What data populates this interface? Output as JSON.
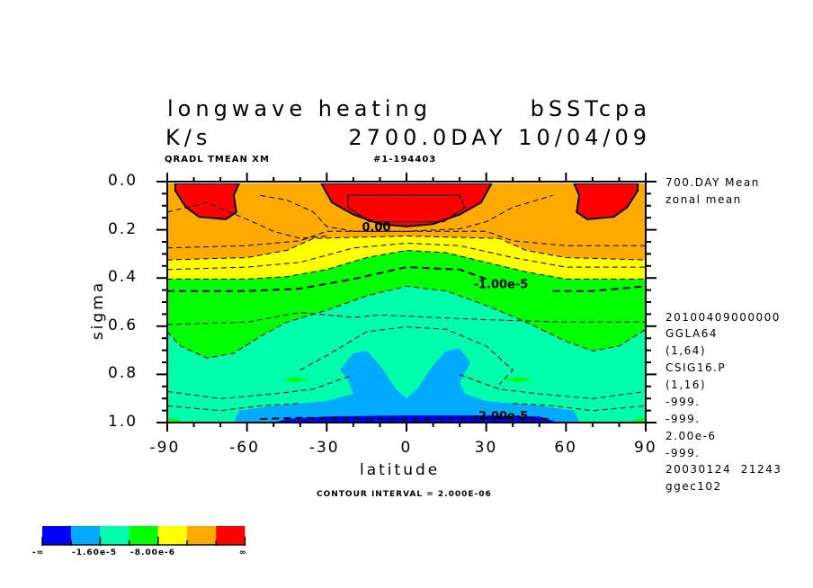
{
  "chart_data": {
    "type": "contour",
    "title": "longwave heating",
    "title_right": "bSSTcpa",
    "units": "K/s",
    "time": "2700.0DAY 10/04/09",
    "field_id": "QRADL TMEAN XM",
    "run_id": "#1-194403",
    "xlabel": "latitude",
    "ylabel": "sigma",
    "xlim": [
      -90,
      90
    ],
    "ylim": [
      0.0,
      1.0
    ],
    "y_inverted": true,
    "x_ticks": [
      "-90",
      "-60",
      "-30",
      "0",
      "30",
      "60",
      "90"
    ],
    "x_tick_values": [
      -90,
      -60,
      -30,
      0,
      30,
      60,
      90
    ],
    "y_ticks": [
      "0.0",
      "0.2",
      "0.4",
      "0.6",
      "0.8",
      "1.0"
    ],
    "y_tick_values": [
      0,
      0.2,
      0.4,
      0.6,
      0.8,
      1.0
    ],
    "contour_interval": "CONTOUR INTERVAL = 2.000E-06",
    "contour_labels": [
      {
        "text": "0.00",
        "lat": -10,
        "sigma": 0.18
      },
      {
        "text": "-1.00e-5",
        "lat": 32,
        "sigma": 0.42
      },
      {
        "text": "-2.00e-5",
        "lat": 32,
        "sigma": 0.97
      }
    ],
    "colors": {
      "dark_blue": "#0000ff",
      "light_blue": "#00aaff",
      "teal": "#00ffaa",
      "green": "#00ff00",
      "yellow": "#ffff00",
      "orange": "#ffaa00",
      "red": "#ff0000"
    },
    "boundaries": {
      "green_teal": [
        [
          -90,
          0.62
        ],
        [
          -85,
          0.68
        ],
        [
          -75,
          0.73
        ],
        [
          -65,
          0.71
        ],
        [
          -55,
          0.64
        ],
        [
          -45,
          0.58
        ],
        [
          -30,
          0.53
        ],
        [
          -15,
          0.47
        ],
        [
          0,
          0.43
        ],
        [
          15,
          0.45
        ],
        [
          30,
          0.51
        ],
        [
          45,
          0.58
        ],
        [
          60,
          0.66
        ],
        [
          70,
          0.7
        ],
        [
          80,
          0.68
        ],
        [
          90,
          0.61
        ]
      ],
      "yellow_green": [
        [
          -90,
          0.4
        ],
        [
          -60,
          0.4
        ],
        [
          -45,
          0.39
        ],
        [
          -30,
          0.36
        ],
        [
          -15,
          0.31
        ],
        [
          0,
          0.28
        ],
        [
          15,
          0.29
        ],
        [
          30,
          0.33
        ],
        [
          45,
          0.37
        ],
        [
          60,
          0.4
        ],
        [
          90,
          0.4
        ]
      ],
      "orange_yellow": [
        [
          -90,
          0.32
        ],
        [
          -60,
          0.31
        ],
        [
          -45,
          0.28
        ],
        [
          -35,
          0.23
        ],
        [
          0,
          0.22
        ],
        [
          35,
          0.23
        ],
        [
          45,
          0.28
        ],
        [
          60,
          0.31
        ],
        [
          90,
          0.32
        ]
      ]
    },
    "regions": {
      "red": [
        [
          [
            -87,
            0.0
          ],
          [
            -87,
            0.03
          ],
          [
            -83,
            0.1
          ],
          [
            -78,
            0.14
          ],
          [
            -68,
            0.15
          ],
          [
            -64,
            0.12
          ],
          [
            -65,
            0.05
          ],
          [
            -63,
            0.0
          ]
        ],
        [
          [
            -32,
            0.0
          ],
          [
            -28,
            0.08
          ],
          [
            -20,
            0.13
          ],
          [
            -10,
            0.17
          ],
          [
            0,
            0.18
          ],
          [
            10,
            0.17
          ],
          [
            20,
            0.13
          ],
          [
            28,
            0.08
          ],
          [
            32,
            0.0
          ]
        ],
        [
          [
            63,
            0.0
          ],
          [
            65,
            0.05
          ],
          [
            64,
            0.12
          ],
          [
            68,
            0.15
          ],
          [
            78,
            0.14
          ],
          [
            83,
            0.1
          ],
          [
            87,
            0.03
          ],
          [
            87,
            0.0
          ]
        ]
      ],
      "light_blue": [
        [
          [
            -65,
            1.0
          ],
          [
            -63,
            0.95
          ],
          [
            -50,
            0.93
          ],
          [
            -30,
            0.91
          ],
          [
            -20,
            0.88
          ],
          [
            -22,
            0.82
          ],
          [
            -25,
            0.78
          ],
          [
            -20,
            0.71
          ],
          [
            -15,
            0.7
          ],
          [
            -10,
            0.76
          ],
          [
            -4,
            0.86
          ],
          [
            0,
            0.9
          ],
          [
            4,
            0.86
          ],
          [
            10,
            0.76
          ],
          [
            15,
            0.7
          ],
          [
            20,
            0.69
          ],
          [
            24,
            0.75
          ],
          [
            20,
            0.83
          ],
          [
            22,
            0.88
          ],
          [
            30,
            0.91
          ],
          [
            50,
            0.93
          ],
          [
            63,
            0.95
          ],
          [
            65,
            1.0
          ]
        ]
      ],
      "dark_blue": [
        [
          [
            -50,
            1.0
          ],
          [
            -45,
            0.985
          ],
          [
            -30,
            0.975
          ],
          [
            0,
            0.97
          ],
          [
            30,
            0.97
          ],
          [
            50,
            0.975
          ],
          [
            57,
            1.0
          ]
        ]
      ],
      "green_patches": [
        [
          [
            -47,
            0.82
          ],
          [
            -42,
            0.81
          ],
          [
            -36,
            0.82
          ],
          [
            -42,
            0.83
          ]
        ],
        [
          [
            36,
            0.82
          ],
          [
            42,
            0.81
          ],
          [
            48,
            0.82
          ],
          [
            42,
            0.83
          ]
        ],
        [
          [
            -90,
            0.98
          ],
          [
            -86,
            0.985
          ],
          [
            -84,
            1.0
          ],
          [
            -90,
            1.0
          ]
        ],
        [
          [
            84,
            1.0
          ],
          [
            86,
            0.985
          ],
          [
            90,
            0.98
          ],
          [
            90,
            1.0
          ]
        ]
      ]
    },
    "dashed_contours": [
      [
        [
          -90,
          0.12
        ],
        [
          -75,
          0.08
        ],
        [
          -60,
          0.15
        ],
        [
          -50,
          0.2
        ],
        [
          -40,
          0.23
        ],
        [
          -30,
          0.22
        ]
      ],
      [
        [
          -55,
          0.05
        ],
        [
          -45,
          0.07
        ],
        [
          -35,
          0.12
        ],
        [
          -30,
          0.18
        ],
        [
          -20,
          0.2
        ],
        [
          0,
          0.2
        ],
        [
          20,
          0.19
        ],
        [
          30,
          0.16
        ],
        [
          40,
          0.1
        ],
        [
          55,
          0.05
        ]
      ],
      [
        [
          -90,
          0.27
        ],
        [
          -60,
          0.26
        ],
        [
          -40,
          0.24
        ],
        [
          -30,
          0.2
        ],
        [
          30,
          0.2
        ],
        [
          40,
          0.24
        ],
        [
          60,
          0.26
        ],
        [
          90,
          0.26
        ]
      ],
      [
        [
          -90,
          0.36
        ],
        [
          -60,
          0.35
        ],
        [
          -40,
          0.33
        ],
        [
          -20,
          0.27
        ],
        [
          0,
          0.25
        ],
        [
          20,
          0.26
        ],
        [
          40,
          0.31
        ],
        [
          60,
          0.35
        ],
        [
          90,
          0.35
        ]
      ],
      [
        [
          -90,
          0.59
        ],
        [
          -60,
          0.58
        ],
        [
          -40,
          0.54
        ],
        [
          -20,
          0.56
        ],
        [
          -10,
          0.55
        ],
        [
          10,
          0.56
        ],
        [
          30,
          0.57
        ],
        [
          60,
          0.58
        ],
        [
          90,
          0.58
        ]
      ],
      [
        [
          -40,
          0.78
        ],
        [
          -30,
          0.72
        ],
        [
          -15,
          0.62
        ],
        [
          0,
          0.6
        ],
        [
          15,
          0.61
        ],
        [
          30,
          0.68
        ],
        [
          40,
          0.78
        ],
        [
          35,
          0.84
        ]
      ],
      [
        [
          -90,
          0.87
        ],
        [
          -70,
          0.9
        ],
        [
          -50,
          0.88
        ],
        [
          -35,
          0.86
        ],
        [
          -20,
          0.8
        ]
      ],
      [
        [
          20,
          0.8
        ],
        [
          35,
          0.86
        ],
        [
          50,
          0.88
        ],
        [
          70,
          0.9
        ],
        [
          90,
          0.87
        ]
      ],
      [
        [
          -90,
          0.93
        ],
        [
          -70,
          0.95
        ],
        [
          -55,
          0.93
        ],
        [
          -40,
          0.92
        ]
      ],
      [
        [
          40,
          0.92
        ],
        [
          55,
          0.93
        ],
        [
          70,
          0.95
        ],
        [
          90,
          0.93
        ]
      ]
    ],
    "thick_dashed_contours": [
      [
        [
          -90,
          0.45
        ],
        [
          -60,
          0.45
        ],
        [
          -40,
          0.44
        ],
        [
          -20,
          0.4
        ],
        [
          0,
          0.35
        ],
        [
          20,
          0.36
        ],
        [
          30,
          0.4
        ]
      ],
      [
        [
          55,
          0.45
        ],
        [
          70,
          0.45
        ],
        [
          90,
          0.43
        ]
      ],
      [
        [
          -55,
          0.985
        ],
        [
          -40,
          0.98
        ],
        [
          0,
          0.985
        ],
        [
          40,
          0.98
        ],
        [
          55,
          0.985
        ]
      ]
    ],
    "colorbar": {
      "colors": [
        "#0000ff",
        "#00aaff",
        "#00ffaa",
        "#00ff00",
        "#ffff00",
        "#ffaa00",
        "#ff0000"
      ],
      "labels": [
        "-∞",
        "-1.60e-5",
        "-8.00e-6",
        "∞"
      ]
    }
  },
  "side_info": [
    "700.DAY Mean",
    "zonal mean",
    "20100409000000",
    "GGLA64",
    "(1,64)",
    "CSIG16.P",
    "(1,16)",
    "-999.",
    "-999.",
    "2.00e-6",
    "-999.",
    "20030124  21243",
    "ggec102"
  ]
}
